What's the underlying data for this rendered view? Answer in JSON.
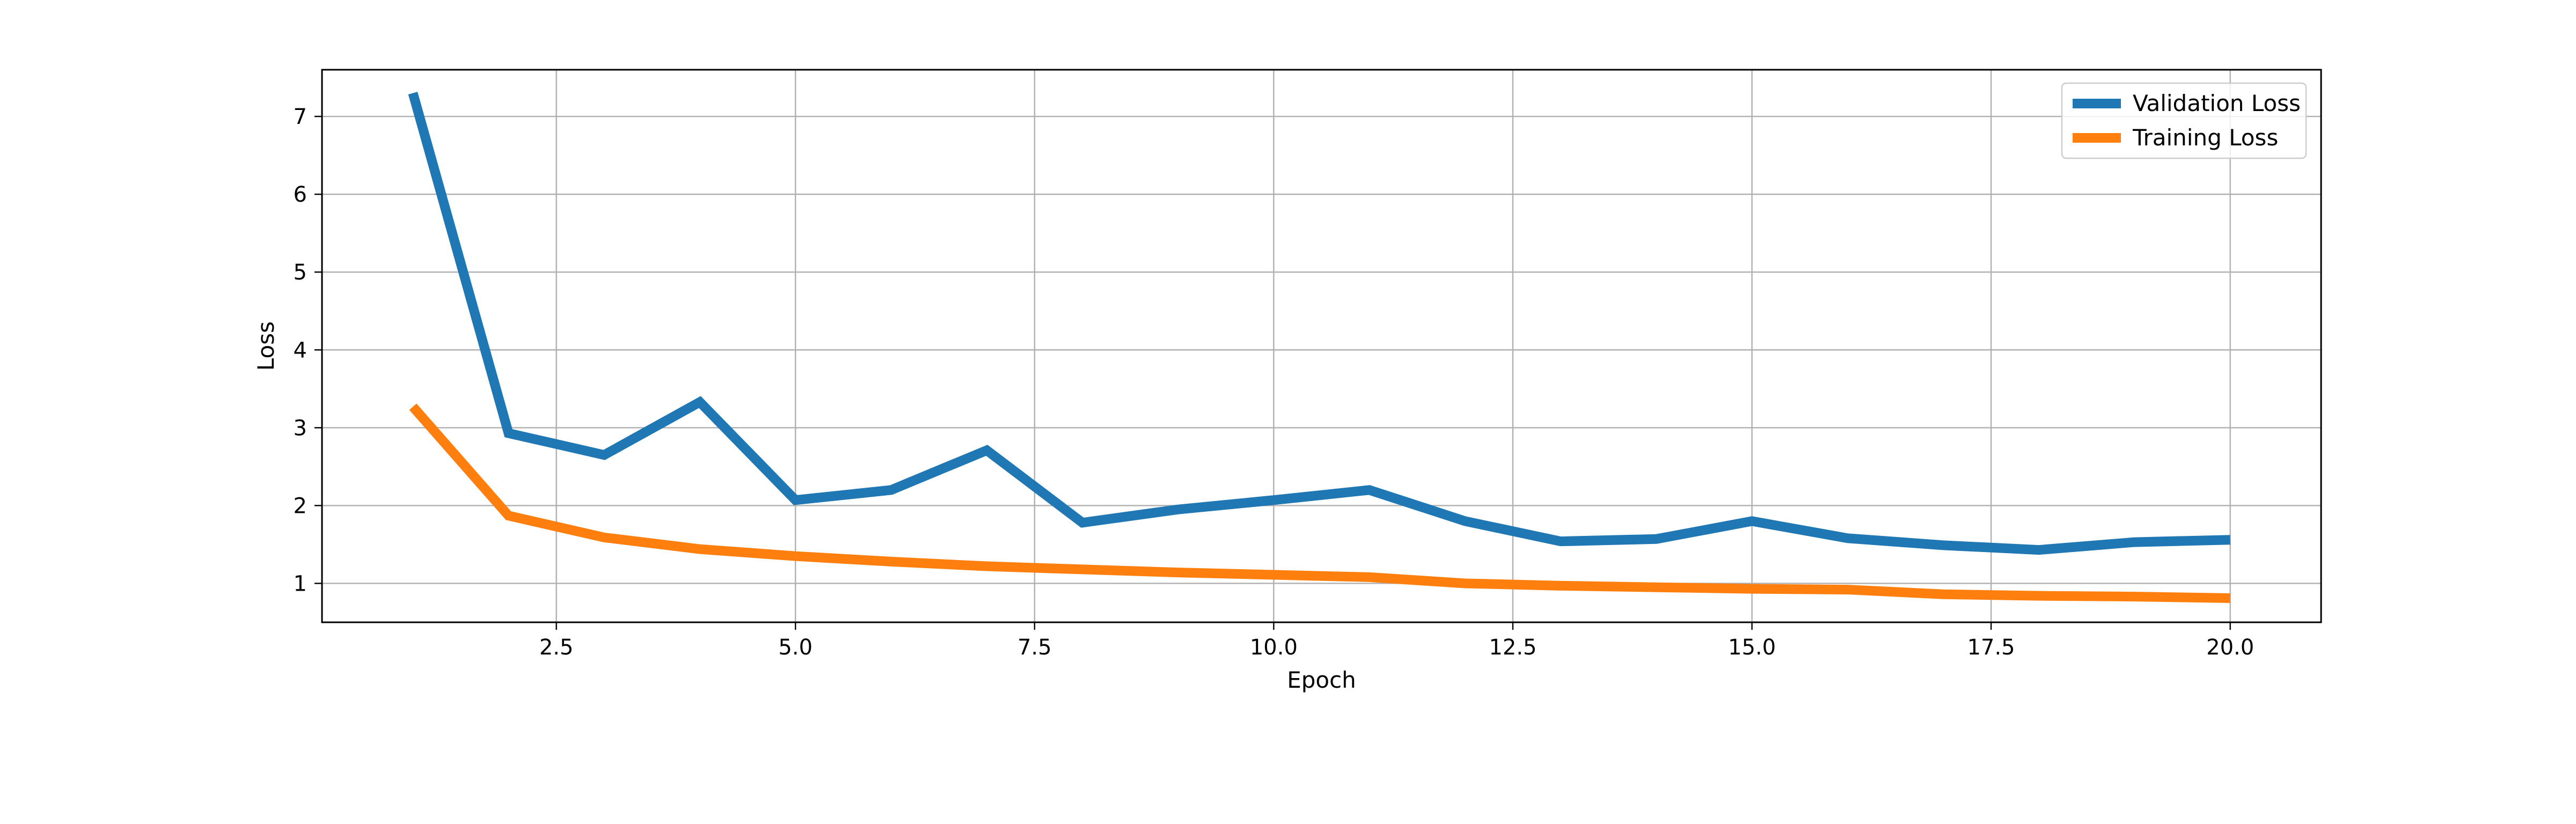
{
  "chart_data": {
    "type": "line",
    "title": "",
    "xlabel": "Epoch",
    "ylabel": "Loss",
    "xlim": [
      0.05,
      20.95
    ],
    "ylim": [
      0.5,
      7.6
    ],
    "xticks": [
      2.5,
      5.0,
      7.5,
      10.0,
      12.5,
      15.0,
      17.5,
      20.0
    ],
    "xtick_labels": [
      "2.5",
      "5.0",
      "7.5",
      "10.0",
      "12.5",
      "15.0",
      "17.5",
      "20.0"
    ],
    "yticks": [
      1,
      2,
      3,
      4,
      5,
      6,
      7
    ],
    "ytick_labels": [
      "1",
      "2",
      "3",
      "4",
      "5",
      "6",
      "7"
    ],
    "grid": true,
    "legend_position": "top-right",
    "x": [
      1,
      2,
      3,
      4,
      5,
      6,
      7,
      8,
      9,
      10,
      11,
      12,
      13,
      14,
      15,
      16,
      17,
      18,
      19,
      20
    ],
    "series": [
      {
        "name": "Validation Loss",
        "color": "#1f77b4",
        "values": [
          7.3,
          2.93,
          2.65,
          3.33,
          2.07,
          2.2,
          2.71,
          1.78,
          1.95,
          2.07,
          2.2,
          1.8,
          1.54,
          1.57,
          1.8,
          1.58,
          1.49,
          1.43,
          1.53,
          1.56
        ]
      },
      {
        "name": "Training Loss",
        "color": "#ff7f0e",
        "values": [
          3.27,
          1.87,
          1.59,
          1.44,
          1.35,
          1.28,
          1.22,
          1.18,
          1.14,
          1.11,
          1.08,
          1.0,
          0.97,
          0.95,
          0.93,
          0.92,
          0.86,
          0.84,
          0.83,
          0.81
        ]
      }
    ]
  }
}
